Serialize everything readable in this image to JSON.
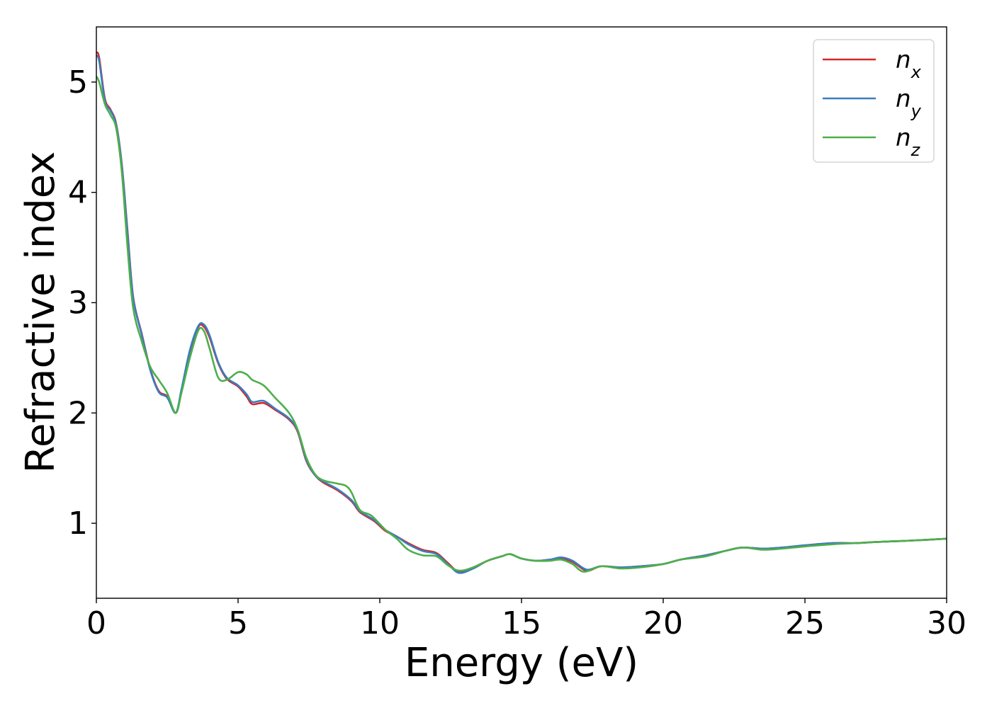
{
  "chart_data": {
    "type": "line",
    "title": "",
    "xlabel": "Energy (eV)",
    "ylabel": "Refractive index",
    "xlim": [
      0,
      30
    ],
    "ylim": [
      0.32,
      5.5
    ],
    "xticks": [
      0,
      5,
      10,
      15,
      20,
      25,
      30
    ],
    "yticks": [
      1,
      2,
      3,
      4,
      5
    ],
    "grid": false,
    "legend_position": "top-right",
    "series": [
      {
        "name": "n",
        "subscript": "x",
        "color": "#d62728",
        "points": [
          [
            0,
            5.27
          ],
          [
            0.1,
            5.22
          ],
          [
            0.3,
            4.85
          ],
          [
            0.5,
            4.75
          ],
          [
            0.7,
            4.62
          ],
          [
            0.9,
            4.25
          ],
          [
            1.1,
            3.65
          ],
          [
            1.3,
            3.05
          ],
          [
            1.6,
            2.72
          ],
          [
            1.9,
            2.4
          ],
          [
            2.2,
            2.2
          ],
          [
            2.5,
            2.15
          ],
          [
            2.8,
            2.0
          ],
          [
            3.0,
            2.2
          ],
          [
            3.3,
            2.55
          ],
          [
            3.6,
            2.78
          ],
          [
            3.8,
            2.78
          ],
          [
            4.0,
            2.68
          ],
          [
            4.3,
            2.45
          ],
          [
            4.6,
            2.31
          ],
          [
            5.0,
            2.24
          ],
          [
            5.3,
            2.15
          ],
          [
            5.5,
            2.08
          ],
          [
            5.9,
            2.09
          ],
          [
            6.3,
            2.03
          ],
          [
            6.8,
            1.94
          ],
          [
            7.1,
            1.83
          ],
          [
            7.4,
            1.57
          ],
          [
            7.7,
            1.44
          ],
          [
            8.0,
            1.37
          ],
          [
            8.5,
            1.3
          ],
          [
            9.0,
            1.2
          ],
          [
            9.3,
            1.1
          ],
          [
            9.8,
            1.02
          ],
          [
            10.2,
            0.93
          ],
          [
            10.6,
            0.88
          ],
          [
            11.0,
            0.82
          ],
          [
            11.5,
            0.76
          ],
          [
            12.0,
            0.73
          ],
          [
            12.4,
            0.64
          ],
          [
            12.8,
            0.56
          ],
          [
            13.3,
            0.6
          ],
          [
            13.8,
            0.66
          ],
          [
            14.3,
            0.7
          ],
          [
            14.6,
            0.72
          ],
          [
            15.0,
            0.68
          ],
          [
            15.5,
            0.66
          ],
          [
            16.0,
            0.67
          ],
          [
            16.4,
            0.68
          ],
          [
            16.8,
            0.65
          ],
          [
            17.3,
            0.57
          ],
          [
            17.8,
            0.61
          ],
          [
            18.5,
            0.6
          ],
          [
            19.2,
            0.61
          ],
          [
            20.0,
            0.63
          ],
          [
            20.6,
            0.67
          ],
          [
            21.5,
            0.71
          ],
          [
            22.2,
            0.75
          ],
          [
            22.8,
            0.78
          ],
          [
            23.5,
            0.77
          ],
          [
            24.2,
            0.78
          ],
          [
            25.0,
            0.8
          ],
          [
            26.0,
            0.82
          ],
          [
            26.8,
            0.82
          ],
          [
            27.5,
            0.83
          ],
          [
            28.5,
            0.84
          ],
          [
            29.3,
            0.85
          ],
          [
            30.0,
            0.86
          ]
        ]
      },
      {
        "name": "n",
        "subscript": "y",
        "color": "#3a7dc0",
        "points": [
          [
            0,
            5.24
          ],
          [
            0.1,
            5.19
          ],
          [
            0.3,
            4.83
          ],
          [
            0.5,
            4.74
          ],
          [
            0.7,
            4.61
          ],
          [
            0.9,
            4.24
          ],
          [
            1.1,
            3.63
          ],
          [
            1.3,
            3.04
          ],
          [
            1.6,
            2.71
          ],
          [
            1.9,
            2.39
          ],
          [
            2.2,
            2.19
          ],
          [
            2.5,
            2.14
          ],
          [
            2.8,
            2.0
          ],
          [
            3.0,
            2.21
          ],
          [
            3.3,
            2.57
          ],
          [
            3.6,
            2.79
          ],
          [
            3.8,
            2.8
          ],
          [
            4.0,
            2.7
          ],
          [
            4.3,
            2.46
          ],
          [
            4.6,
            2.32
          ],
          [
            5.0,
            2.25
          ],
          [
            5.3,
            2.17
          ],
          [
            5.5,
            2.1
          ],
          [
            5.9,
            2.11
          ],
          [
            6.3,
            2.04
          ],
          [
            6.8,
            1.95
          ],
          [
            7.1,
            1.84
          ],
          [
            7.4,
            1.58
          ],
          [
            7.7,
            1.44
          ],
          [
            8.0,
            1.38
          ],
          [
            8.5,
            1.31
          ],
          [
            9.0,
            1.21
          ],
          [
            9.3,
            1.11
          ],
          [
            9.8,
            1.03
          ],
          [
            10.2,
            0.94
          ],
          [
            10.6,
            0.88
          ],
          [
            11.0,
            0.81
          ],
          [
            11.5,
            0.75
          ],
          [
            12.0,
            0.72
          ],
          [
            12.4,
            0.63
          ],
          [
            12.8,
            0.55
          ],
          [
            13.3,
            0.59
          ],
          [
            13.8,
            0.66
          ],
          [
            14.3,
            0.7
          ],
          [
            14.6,
            0.72
          ],
          [
            15.0,
            0.68
          ],
          [
            15.5,
            0.66
          ],
          [
            16.0,
            0.67
          ],
          [
            16.4,
            0.69
          ],
          [
            16.8,
            0.66
          ],
          [
            17.3,
            0.58
          ],
          [
            17.8,
            0.61
          ],
          [
            18.5,
            0.6
          ],
          [
            19.2,
            0.61
          ],
          [
            20.0,
            0.63
          ],
          [
            20.6,
            0.67
          ],
          [
            21.5,
            0.71
          ],
          [
            22.2,
            0.75
          ],
          [
            22.8,
            0.78
          ],
          [
            23.5,
            0.77
          ],
          [
            24.2,
            0.78
          ],
          [
            25.0,
            0.8
          ],
          [
            26.0,
            0.82
          ],
          [
            26.8,
            0.82
          ],
          [
            27.5,
            0.83
          ],
          [
            28.5,
            0.84
          ],
          [
            29.3,
            0.85
          ],
          [
            30.0,
            0.86
          ]
        ]
      },
      {
        "name": "n",
        "subscript": "z",
        "color": "#4daf4a",
        "points": [
          [
            0,
            5.05
          ],
          [
            0.1,
            5.0
          ],
          [
            0.3,
            4.8
          ],
          [
            0.5,
            4.7
          ],
          [
            0.7,
            4.58
          ],
          [
            0.9,
            4.18
          ],
          [
            1.1,
            3.5
          ],
          [
            1.3,
            2.95
          ],
          [
            1.6,
            2.65
          ],
          [
            1.9,
            2.42
          ],
          [
            2.2,
            2.3
          ],
          [
            2.5,
            2.18
          ],
          [
            2.8,
            2.0
          ],
          [
            3.0,
            2.18
          ],
          [
            3.3,
            2.5
          ],
          [
            3.6,
            2.75
          ],
          [
            3.8,
            2.74
          ],
          [
            4.0,
            2.58
          ],
          [
            4.3,
            2.32
          ],
          [
            4.6,
            2.3
          ],
          [
            5.0,
            2.37
          ],
          [
            5.3,
            2.35
          ],
          [
            5.5,
            2.3
          ],
          [
            5.9,
            2.25
          ],
          [
            6.3,
            2.14
          ],
          [
            6.8,
            2.0
          ],
          [
            7.1,
            1.85
          ],
          [
            7.4,
            1.6
          ],
          [
            7.7,
            1.45
          ],
          [
            8.0,
            1.39
          ],
          [
            8.5,
            1.36
          ],
          [
            8.8,
            1.34
          ],
          [
            9.0,
            1.28
          ],
          [
            9.3,
            1.12
          ],
          [
            9.7,
            1.07
          ],
          [
            10.2,
            0.94
          ],
          [
            10.6,
            0.86
          ],
          [
            11.0,
            0.76
          ],
          [
            11.5,
            0.71
          ],
          [
            12.0,
            0.7
          ],
          [
            12.4,
            0.62
          ],
          [
            12.8,
            0.57
          ],
          [
            13.3,
            0.6
          ],
          [
            13.8,
            0.66
          ],
          [
            14.3,
            0.7
          ],
          [
            14.6,
            0.72
          ],
          [
            15.0,
            0.68
          ],
          [
            15.5,
            0.66
          ],
          [
            16.0,
            0.66
          ],
          [
            16.4,
            0.67
          ],
          [
            16.8,
            0.63
          ],
          [
            17.2,
            0.56
          ],
          [
            17.8,
            0.61
          ],
          [
            18.5,
            0.59
          ],
          [
            19.2,
            0.6
          ],
          [
            20.0,
            0.63
          ],
          [
            20.6,
            0.67
          ],
          [
            21.5,
            0.7
          ],
          [
            22.2,
            0.75
          ],
          [
            22.8,
            0.78
          ],
          [
            23.5,
            0.76
          ],
          [
            24.2,
            0.77
          ],
          [
            25.0,
            0.79
          ],
          [
            26.0,
            0.81
          ],
          [
            26.8,
            0.82
          ],
          [
            27.5,
            0.83
          ],
          [
            28.5,
            0.84
          ],
          [
            29.3,
            0.85
          ],
          [
            30.0,
            0.86
          ]
        ]
      }
    ]
  }
}
